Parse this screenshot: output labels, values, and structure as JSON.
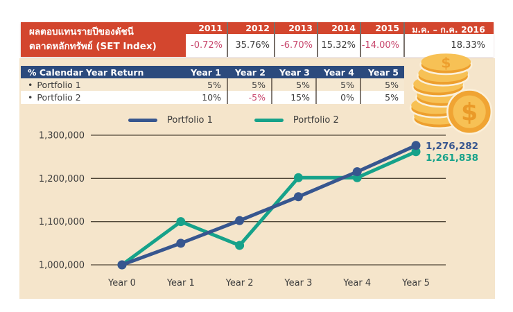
{
  "colors": {
    "red_header": "#D3462E",
    "navy_header": "#2B4A7D",
    "cream_panel": "#F5E5CB",
    "negative_value": "#C8476D",
    "portfolio1_blue": "#37568F",
    "portfolio2_teal": "#16A28A",
    "coin_gold": "#F0A433",
    "coin_gold_light": "#F7C155"
  },
  "set_index_table": {
    "title_line1": "ผลตอบแทนรายปีของดัชนี",
    "title_line2": "ตลาดหลักทรัพย์ (SET Index)",
    "columns": [
      "2011",
      "2012",
      "2013",
      "2014",
      "2015",
      "ม.ค. – ก.ค. 2016"
    ],
    "values": [
      "-0.72%",
      "35.76%",
      "-6.70%",
      "15.32%",
      "-14.00%",
      "18.33%"
    ]
  },
  "calendar_table": {
    "header": "% Calendar Year Return",
    "bullet": "•",
    "year_columns": [
      "Year 1",
      "Year 2",
      "Year 3",
      "Year 4",
      "Year 5"
    ],
    "rows": [
      {
        "label": "Portfolio 1",
        "values": [
          "5%",
          "5%",
          "5%",
          "5%",
          "5%"
        ]
      },
      {
        "label": "Portfolio 2",
        "values": [
          "10%",
          "-5%",
          "15%",
          "0%",
          "5%"
        ]
      }
    ]
  },
  "chart_data": {
    "type": "line",
    "title": "",
    "xlabel": "",
    "ylabel": "",
    "x_tick_labels": [
      "Year 0",
      "Year 1",
      "Year 2",
      "Year 3",
      "Year 4",
      "Year 5"
    ],
    "y_ticks": [
      1000000,
      1100000,
      1200000,
      1300000
    ],
    "y_tick_labels": [
      "1,000,000",
      "1,100,000",
      "1,200,000",
      "1,300,000"
    ],
    "ylim": [
      1000000,
      1300000
    ],
    "grid": true,
    "legend_position": "top-center",
    "series": [
      {
        "name": "Portfolio 1",
        "color": "#37568F",
        "values": [
          1000000,
          1050000,
          1102500,
          1157625,
          1215506,
          1276282
        ],
        "end_label": "1,276,282"
      },
      {
        "name": "Portfolio 2",
        "color": "#16A28A",
        "values": [
          1000000,
          1100000,
          1045000,
          1201750,
          1201750,
          1261838
        ],
        "end_label": "1,261,838"
      }
    ]
  },
  "icons": {
    "coin_symbol": "$"
  }
}
